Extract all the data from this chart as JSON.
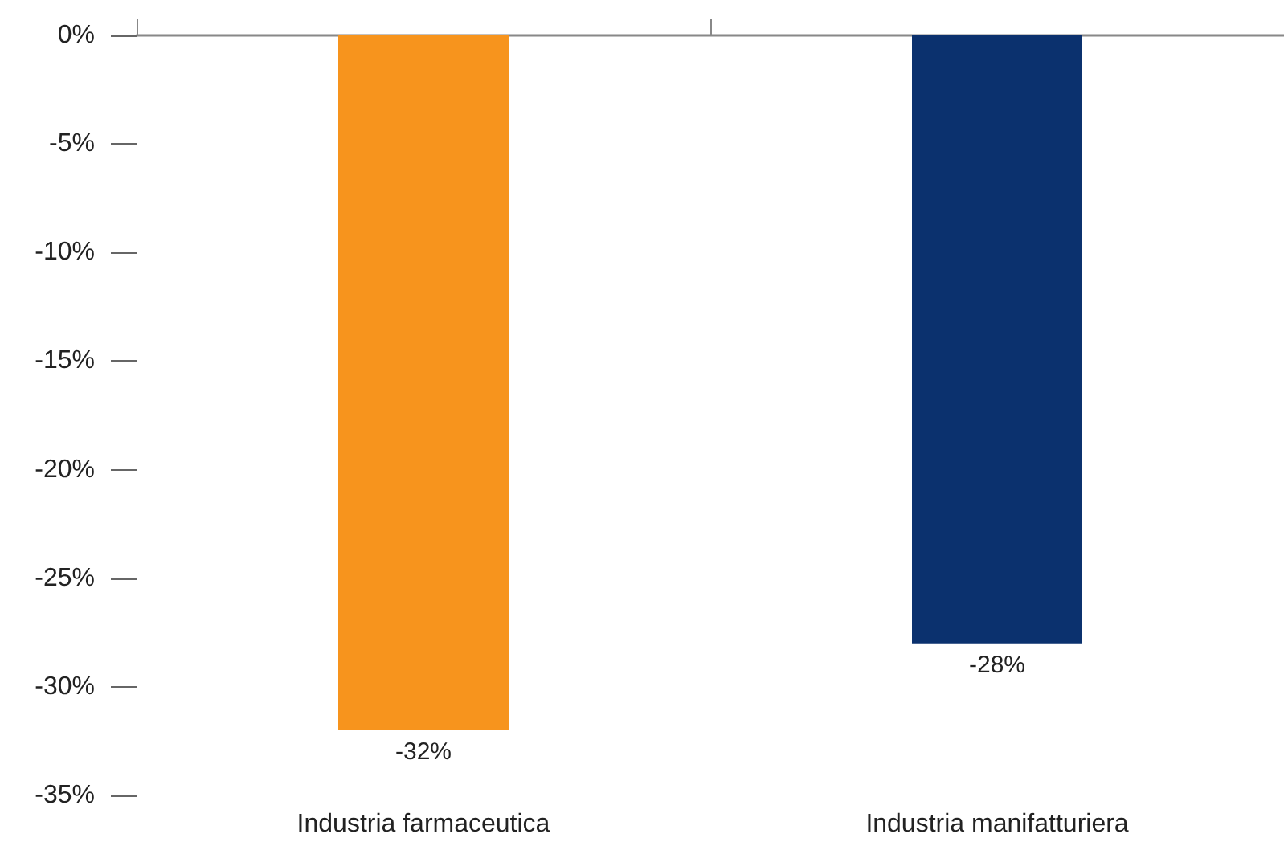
{
  "chart_data": {
    "type": "bar",
    "categories": [
      "Industria farmaceutica",
      "Industria manifatturiera"
    ],
    "values": [
      -32,
      -28
    ],
    "colors": [
      "#f7941d",
      "#0b316e"
    ],
    "value_labels": [
      "-32%",
      "-28%"
    ],
    "ylim": [
      -35,
      0
    ],
    "yticks": [
      {
        "value": -35,
        "label": "-35%"
      },
      {
        "value": -30,
        "label": "-30%"
      },
      {
        "value": -25,
        "label": "-25%"
      },
      {
        "value": -20,
        "label": "-20%"
      },
      {
        "value": -15,
        "label": "-15%"
      },
      {
        "value": -10,
        "label": "-10%"
      },
      {
        "value": -5,
        "label": "-5%"
      },
      {
        "value": 0,
        "label": "0%"
      }
    ],
    "grid": false
  }
}
